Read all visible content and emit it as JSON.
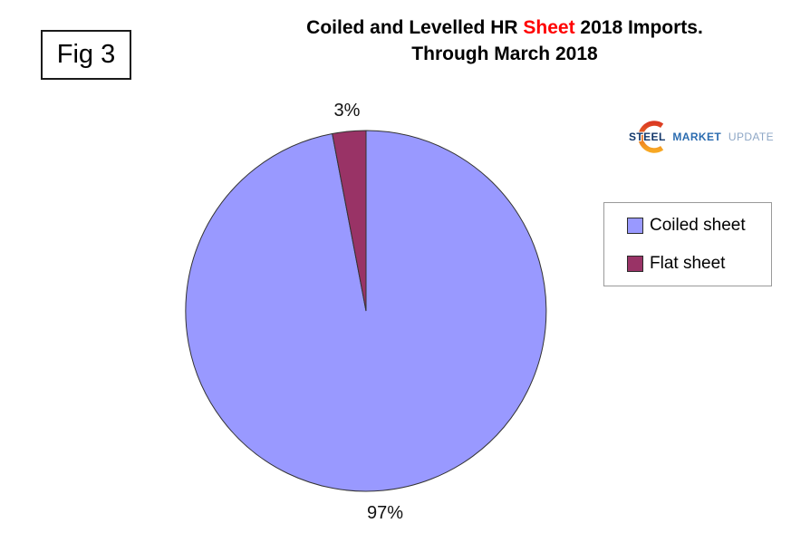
{
  "figure_label": "Fig 3",
  "header": {
    "title_part1": "Coiled and Levelled HR ",
    "title_highlight": "Sheet",
    "title_part2": " 2018 Imports.",
    "title_line2": "Through March 2018",
    "highlight_color": "#FF0000"
  },
  "logo": {
    "word1": "STEEL",
    "word2": "MARKET",
    "word3": "UPDATE",
    "word1_color": "#14386B",
    "word2_color": "#2B6CB0",
    "word3_color": "#8EA7C6",
    "crescent_color_top": "#DB3A23",
    "crescent_color_bottom": "#F7A823"
  },
  "chart_data": {
    "type": "pie",
    "title": "Coiled and Levelled HR Sheet 2018 Imports. Through March 2018",
    "start_angle_deg": 0,
    "direction": "clockwise",
    "legend_position": "right",
    "grid": false,
    "slices": [
      {
        "label": "Coiled sheet",
        "value": 97,
        "pct_label": "97%",
        "color": "#9999FF"
      },
      {
        "label": "Flat sheet",
        "value": 3,
        "pct_label": "3%",
        "color": "#993366"
      }
    ]
  }
}
